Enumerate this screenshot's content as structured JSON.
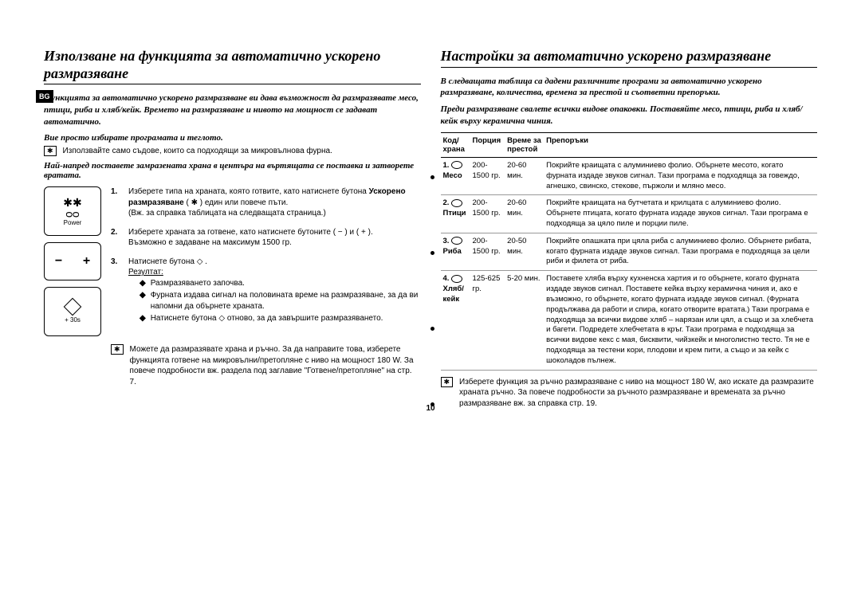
{
  "page": {
    "lang_tab": "BG",
    "number": "10"
  },
  "left": {
    "title": "Използване на функцията за автоматично ускорено размразяване",
    "intro": "Функцията за автоматично ускорено размразяване ви дава възможност да размразявате месо, птици, риба и хляб/кейк. Времето на размразяване и нивото на мощност се задават автоматично.",
    "sub1": "Вие просто избирате програмата и теглото.",
    "note1": "Използвайте само съдове, които са подходящи за микровълнова фурна.",
    "sub2": "Най-напред поставете замразената храна в центъра на въртящата се поставка и затворете вратата.",
    "panel": {
      "power": "Power",
      "plus30": "+ 30s"
    },
    "steps": {
      "s1": {
        "n": "1.",
        "text_a": "Изберете типа на храната, която готвите, като натиснете бутона ",
        "bold": "Ускорено размразяване",
        "text_b": " ( ✱ ) един или повече пъти.",
        "text_c": "(Вж. за справка таблицата на следващата страница.)"
      },
      "s2": {
        "n": "2.",
        "text_a": "Изберете храната за готвене, като натиснете бутоните ( − ) и ( + ).",
        "text_b": "Възможно е задаване на максимум 1500 гр."
      },
      "s3": {
        "n": "3.",
        "text_a": "Натиснете бутона ◇ .",
        "underline": "Резултат:"
      },
      "bullets": {
        "b1": "Размразяването започва.",
        "b2": "Фурната издава сигнал на половината време на размразяване, за да ви напомни да обърнете храната.",
        "b3": "Натиснете бутона ◇ отново, за да завършите размразяването."
      }
    },
    "bottom_note": "Можете да размразявате храна и ръчно. За да направите това, изберете функцията готвене на микровълни/претопляне с ниво на мощност 180 W. За повече подробности вж. раздела под заглавие \"Готвене/претопляне\" на стр. 7."
  },
  "right": {
    "title": "Настройки за автоматично ускорено размразяване",
    "intro1": "В следващата таблица са дадени различните програми за автоматично ускорено размразяване, количества, времена за престой и съответни препоръки.",
    "intro2": "Преди размразяване свалете всички видове опаковки. Поставяйте месо, птици, риба и хляб/кейк върху керамична чиния.",
    "table": {
      "headers": {
        "h1": "Код/храна",
        "h2": "Порция",
        "h3": "Време за престой",
        "h4": "Препоръки"
      },
      "r1": {
        "code": "1.",
        "name": "Месо",
        "portion": "200-1500 гр.",
        "time": "20-60 мин.",
        "rec": "Покрийте краищата с алуминиево фолио. Обърнете месото, когато фурната издаде звуков сигнал. Тази програма е подходяща за говеждо, агнешко, свинско, стекове, пържоли и мляно месо."
      },
      "r2": {
        "code": "2.",
        "name": "Птици",
        "portion": "200-1500 гр.",
        "time": "20-60 мин.",
        "rec": "Покрийте краищата на бутчетата и крилцата с алуминиево фолио. Обърнете птицата, когато фурната издаде звуков сигнал. Тази програма е подходяща за цяло пиле и порции пиле."
      },
      "r3": {
        "code": "3.",
        "name": "Риба",
        "portion": "200-1500 гр.",
        "time": "20-50 мин.",
        "rec": "Покрийте опашката при цяла риба с алуминиево фолио. Обърнете рибата, когато фурната издаде звуков сигнал. Тази програма е подходяща за цели риби и филета от риба."
      },
      "r4": {
        "code": "4.",
        "name": "Хляб/кейк",
        "portion": "125-625 гр.",
        "time": "5-20 мин.",
        "rec": "Поставете хляба върху кухненска хартия и го обърнете, когато фурната издаде звуков сигнал. Поставете кейка върху керамична чиния и, ако е възможно, го обърнете, когато фурната издаде звуков сигнал. (Фурната продължава да работи и спира, когато отворите вратата.) Тази програма е подходяща за всички видове хляб – нарязан или цял, а също и за хлебчета и багети. Подредете хлебчетата в кръг. Тази програма е подходяща за всички видове кекс с мая, бисквити, чийзкейк и многолистно тесто. Тя не е подходяща за тестени кори, плодови и крем пити, а също и за кейк с шоколадов пълнеж."
      }
    },
    "note": "Изберете функция за ръчно размразяване с ниво на мощност 180 W, ако искате да размразите храната ръчно. За повече подробности за ръчното размразяване и времената за ръчно размразяване вж. за справка стр. 19."
  }
}
